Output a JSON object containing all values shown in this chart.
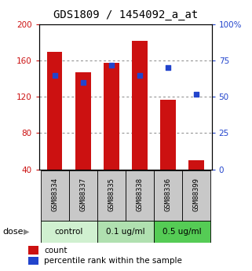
{
  "title": "GDS1809 / 1454092_a_at",
  "samples": [
    "GSM88334",
    "GSM88337",
    "GSM88335",
    "GSM88338",
    "GSM88336",
    "GSM88399"
  ],
  "counts": [
    170,
    147,
    158,
    182,
    117,
    50
  ],
  "percentiles": [
    65,
    60,
    72,
    65,
    70,
    52
  ],
  "ylim_left": [
    40,
    200
  ],
  "ylim_right": [
    0,
    100
  ],
  "yticks_left": [
    40,
    80,
    120,
    160,
    200
  ],
  "yticks_right": [
    0,
    25,
    50,
    75,
    100
  ],
  "bar_color": "#cc1111",
  "dot_color": "#2244cc",
  "bar_width": 0.55,
  "dose_label": "dose",
  "legend_count": "count",
  "legend_percentile": "percentile rank within the sample",
  "title_fontsize": 10,
  "axis_label_color_left": "#cc1111",
  "axis_label_color_right": "#2244cc",
  "grid_color": "#888888",
  "bg_label": "#c8c8c8",
  "bg_dose_control": "#d0f0d0",
  "bg_dose_01": "#b0e0b0",
  "bg_dose_05": "#55cc55",
  "dose_groups": [
    {
      "label": "control",
      "start": 0,
      "end": 1,
      "color": "#d0f0d0"
    },
    {
      "label": "0.1 ug/ml",
      "start": 2,
      "end": 3,
      "color": "#b0e0b0"
    },
    {
      "label": "0.5 ug/ml",
      "start": 4,
      "end": 5,
      "color": "#55cc55"
    }
  ]
}
